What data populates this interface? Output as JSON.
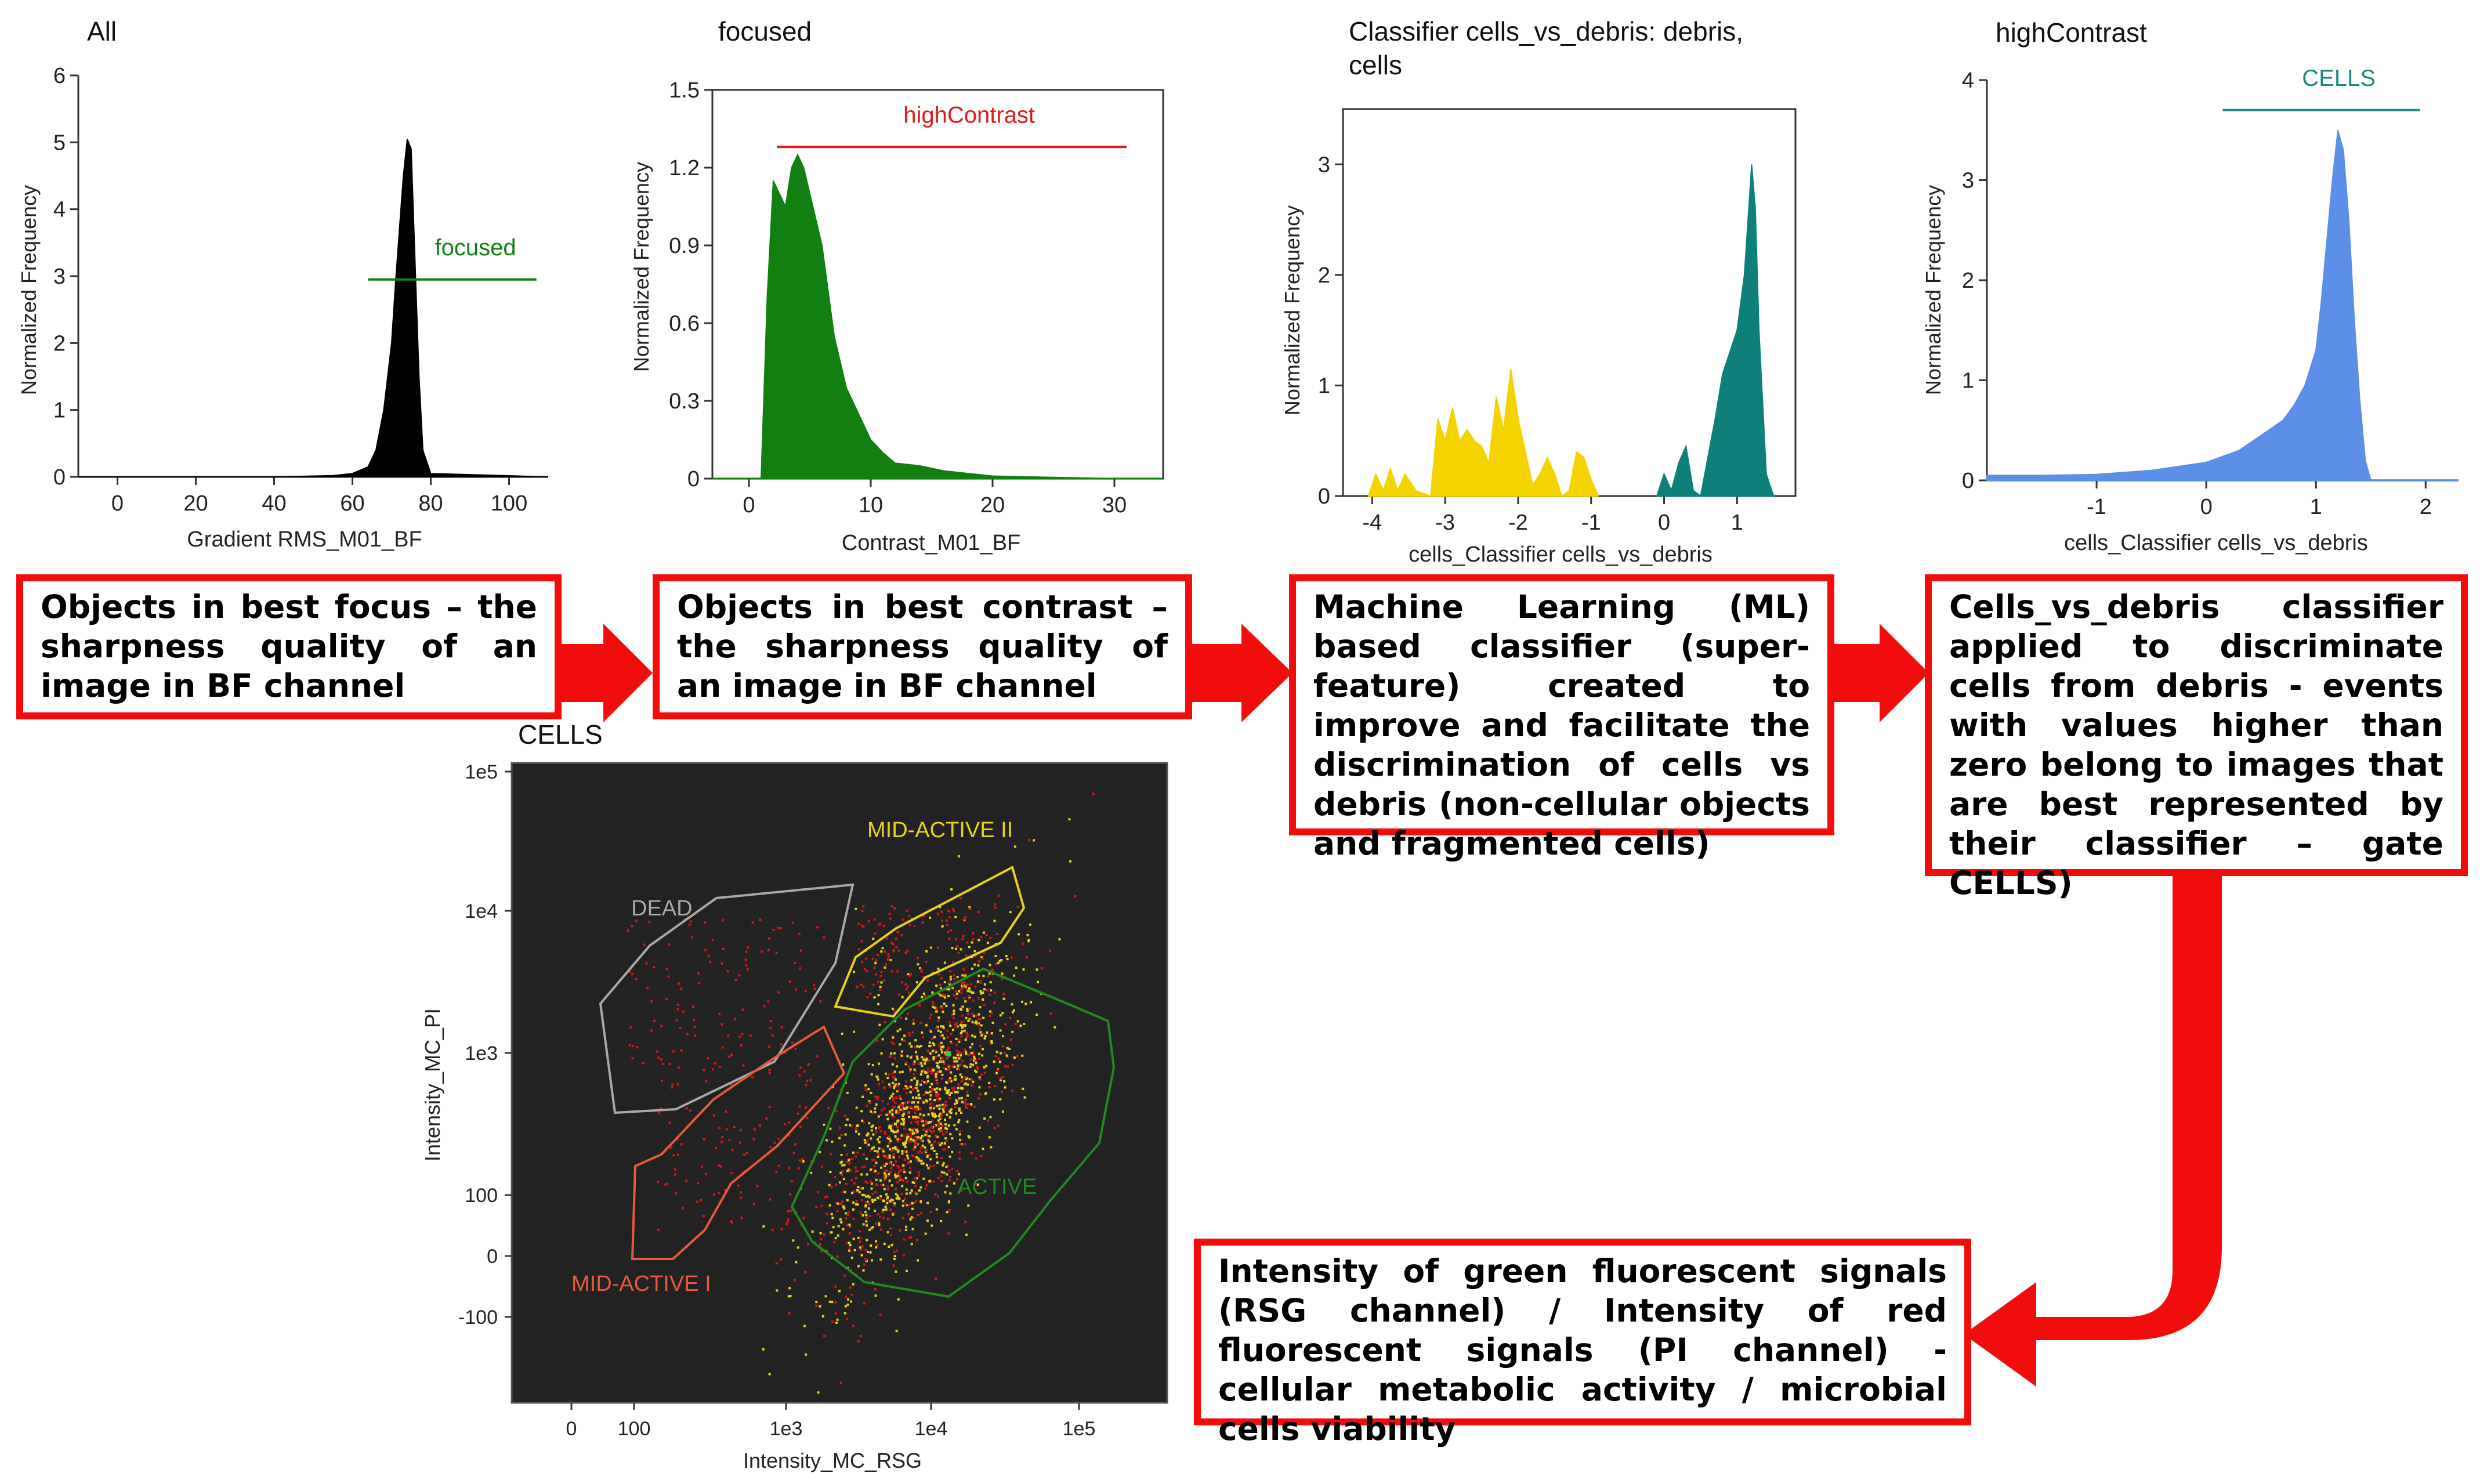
{
  "colors": {
    "red_accent": "#f20d0d",
    "black_hist": "#000000",
    "green_hist": "#118011",
    "yellow_hist": "#f5d300",
    "teal_hist": "#0e7f7a",
    "blue_hist": "#5b8fe8",
    "scatter_bg": "#222222"
  },
  "chart_data": [
    {
      "id": "all",
      "type": "area",
      "title": "All",
      "xlabel": "Gradient RMS_M01_BF",
      "ylabel": "Normalized Frequency",
      "xlim": [
        -10,
        110
      ],
      "ylim": [
        0,
        6
      ],
      "xticks": [
        0,
        20,
        40,
        60,
        80,
        100
      ],
      "yticks": [
        0,
        1,
        2,
        3,
        4,
        5,
        6
      ],
      "x": [
        -10,
        40,
        55,
        60,
        64,
        66,
        68,
        70,
        71,
        72,
        73,
        74,
        75,
        76,
        77,
        78,
        80,
        110
      ],
      "values": [
        0,
        0,
        0.02,
        0.05,
        0.15,
        0.4,
        1.0,
        2.0,
        2.9,
        3.7,
        4.5,
        5.05,
        4.9,
        3.2,
        1.5,
        0.4,
        0.05,
        0
      ],
      "gate": {
        "label": "focused",
        "x1": 64,
        "x2": 107,
        "y": 2.95,
        "color": "#118011"
      }
    },
    {
      "id": "focused",
      "type": "area",
      "title": "focused",
      "xlabel": "Contrast_M01_BF",
      "ylabel": "Normalized Frequency",
      "xlim": [
        -3,
        34
      ],
      "ylim": [
        0,
        1.5
      ],
      "xticks": [
        0,
        10,
        20,
        30
      ],
      "yticks": [
        0,
        0.3,
        0.6,
        0.9,
        1.2,
        1.5
      ],
      "x": [
        -3,
        1.0,
        1.5,
        2.0,
        2.5,
        3.0,
        3.5,
        4.0,
        4.5,
        5.0,
        6.0,
        7.0,
        8.0,
        9.0,
        10,
        11,
        12,
        14,
        16,
        18,
        20,
        25,
        30,
        34
      ],
      "values": [
        0,
        0,
        0.7,
        1.15,
        1.1,
        1.05,
        1.2,
        1.25,
        1.2,
        1.1,
        0.9,
        0.55,
        0.35,
        0.25,
        0.15,
        0.1,
        0.06,
        0.05,
        0.03,
        0.02,
        0.01,
        0.005,
        0,
        0
      ],
      "gate": {
        "label": "highContrast",
        "x1": 2.3,
        "x2": 31,
        "y": 1.28,
        "color": "#e01a1a"
      }
    },
    {
      "id": "classifier",
      "type": "area",
      "title": "Classifier cells_vs_debris: debris, cells",
      "xlabel": "cells_Classifier cells_vs_debris",
      "ylabel": "Normalized Frequency",
      "xlim": [
        -4.4,
        1.8
      ],
      "ylim": [
        0,
        3.5
      ],
      "xticks": [
        -4,
        -3,
        -2,
        -1,
        0,
        1
      ],
      "yticks": [
        0,
        1,
        2,
        3
      ],
      "series": [
        {
          "color": "#f5d300",
          "x": [
            -4.05,
            -3.95,
            -3.85,
            -3.75,
            -3.65,
            -3.55,
            -3.4,
            -3.2,
            -3.1,
            -3.0,
            -2.9,
            -2.8,
            -2.7,
            -2.6,
            -2.5,
            -2.4,
            -2.3,
            -2.2,
            -2.1,
            -2.0,
            -1.9,
            -1.8,
            -1.7,
            -1.6,
            -1.5,
            -1.4,
            -1.3,
            -1.2,
            -1.1,
            -1.0,
            -0.9
          ],
          "values": [
            0,
            0.2,
            0.05,
            0.25,
            0.05,
            0.2,
            0.05,
            0.0,
            0.7,
            0.5,
            0.8,
            0.5,
            0.6,
            0.5,
            0.45,
            0.3,
            0.9,
            0.6,
            1.15,
            0.7,
            0.4,
            0.1,
            0.2,
            0.35,
            0.2,
            0.0,
            0.05,
            0.4,
            0.35,
            0.15,
            0
          ]
        },
        {
          "color": "#0e7f7a",
          "x": [
            -0.1,
            0.0,
            0.1,
            0.2,
            0.3,
            0.4,
            0.5,
            0.6,
            0.7,
            0.8,
            0.9,
            1.0,
            1.1,
            1.2,
            1.25,
            1.3,
            1.4,
            1.5
          ],
          "values": [
            0,
            0.2,
            0.05,
            0.3,
            0.45,
            0.05,
            0.0,
            0.35,
            0.7,
            1.1,
            1.3,
            1.5,
            2.0,
            3.0,
            2.6,
            1.5,
            0.2,
            0
          ]
        }
      ]
    },
    {
      "id": "highcontrast",
      "type": "area",
      "title": "highContrast",
      "xlabel": "cells_Classifier cells_vs_debris",
      "ylabel": "Normalized Frequency",
      "xlim": [
        -2.0,
        2.3
      ],
      "ylim": [
        0,
        4
      ],
      "xticks": [
        -1,
        0,
        1,
        2
      ],
      "yticks": [
        0,
        1,
        2,
        3,
        4
      ],
      "x": [
        -2.0,
        -1.5,
        -1.0,
        -0.5,
        0.0,
        0.3,
        0.5,
        0.7,
        0.8,
        0.9,
        1.0,
        1.05,
        1.1,
        1.15,
        1.2,
        1.25,
        1.3,
        1.35,
        1.4,
        1.45,
        1.5,
        2.3
      ],
      "values": [
        0.05,
        0.05,
        0.06,
        0.1,
        0.18,
        0.3,
        0.45,
        0.6,
        0.75,
        0.95,
        1.3,
        1.8,
        2.4,
        3.0,
        3.5,
        3.3,
        2.6,
        1.6,
        0.8,
        0.2,
        0,
        0
      ],
      "gate": {
        "label": "CELLS",
        "x1": 0.15,
        "x2": 1.95,
        "y": 3.7,
        "color": "#1a8a7a"
      }
    },
    {
      "id": "cells-scatter",
      "type": "scatter",
      "title": "CELLS",
      "xlabel": "Intensity_MC_RSG",
      "ylabel": "Intensity_MC_PI",
      "xticks": [
        "0",
        "100",
        "1e3",
        "1e4",
        "1e5"
      ],
      "yticks": [
        "1e5",
        "1e4",
        "1e3",
        "100",
        "0",
        "-100"
      ],
      "gates": [
        {
          "label": "DEAD",
          "color": "#a8a8a8"
        },
        {
          "label": "MID-ACTIVE II",
          "color": "#e6d21a"
        },
        {
          "label": "ACTIVE",
          "color": "#1f8a1f"
        },
        {
          "label": "MID-ACTIVE I",
          "color": "#e85a3a"
        }
      ]
    }
  ],
  "boxes": [
    {
      "text": "Objects in best focus – the sharpness quality of an image in BF channel"
    },
    {
      "text": "Objects in best contrast – the sharpness quality of an image in BF channel"
    },
    {
      "text": "Machine Learning (ML) based classifier (super-feature) created to improve and facilitate the discrimination of cells vs debris (non-cellular objects and fragmented cells)"
    },
    {
      "text": "Cells_vs_debris classifier applied to discriminate cells from debris - events with values higher than zero belong to images that are best represented by their classifier – gate CELLS)"
    },
    {
      "text": "Intensity of green fluorescent signals (RSG channel) / Intensity of red fluorescent signals (PI channel) - cellular metabolic activity / microbial cells viability"
    }
  ]
}
